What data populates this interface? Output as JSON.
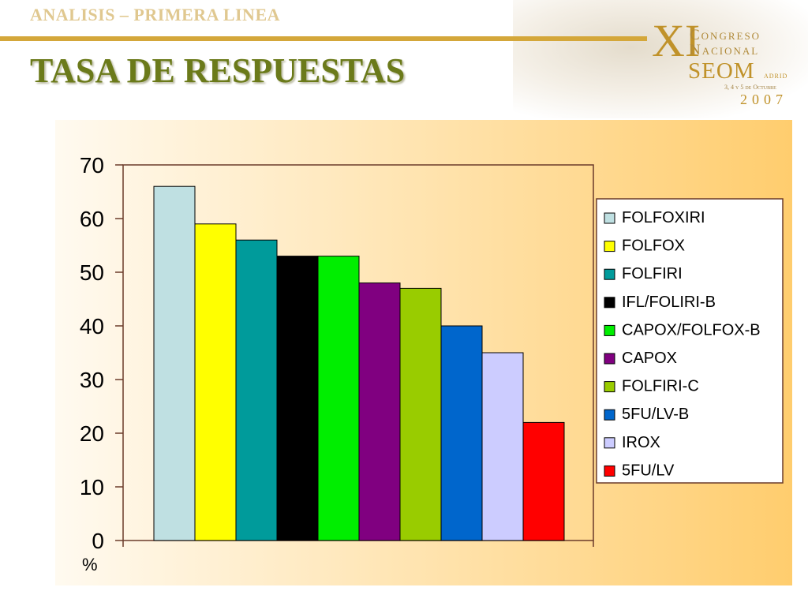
{
  "header": {
    "subtitle": "ANALISIS – PRIMERA LINEA",
    "title": "TASA DE RESPUESTAS"
  },
  "logo": {
    "roman": "XI",
    "line1": "Congreso",
    "line2": "Nacional",
    "seom": "SEOM",
    "city": "adrid",
    "dates": "3, 4 y 5 de Octubre",
    "year": "2007"
  },
  "colors": {
    "title": "#6b7a1a",
    "accent_bar": "#d4a73a",
    "plot_bg_from": "#fffaf0",
    "plot_bg_to": "#ffcd6e",
    "axis": "#6a3b2a"
  },
  "chart_data": {
    "type": "bar",
    "title": "",
    "xlabel": "",
    "ylabel": "%",
    "ylim": [
      0,
      70
    ],
    "yticks": [
      0,
      10,
      20,
      30,
      40,
      50,
      60,
      70
    ],
    "grid": false,
    "legend_position": "right",
    "series": [
      {
        "name": "FOLFOXIRI",
        "value": 66,
        "color": "#bfe0e2"
      },
      {
        "name": "FOLFOX",
        "value": 59,
        "color": "#ffff00"
      },
      {
        "name": "FOLFIRI",
        "value": 56,
        "color": "#009b9b"
      },
      {
        "name": "IFL/FOLIRI-B",
        "value": 53,
        "color": "#000000"
      },
      {
        "name": "CAPOX/FOLFOX-B",
        "value": 53,
        "color": "#00ee00"
      },
      {
        "name": "CAPOX",
        "value": 48,
        "color": "#800080"
      },
      {
        "name": "FOLFIRI-C",
        "value": 47,
        "color": "#99cc00"
      },
      {
        "name": "5FU/LV-B",
        "value": 40,
        "color": "#0066cc"
      },
      {
        "name": "IROX",
        "value": 35,
        "color": "#ccccff"
      },
      {
        "name": "5FU/LV",
        "value": 22,
        "color": "#ff0000"
      }
    ]
  }
}
